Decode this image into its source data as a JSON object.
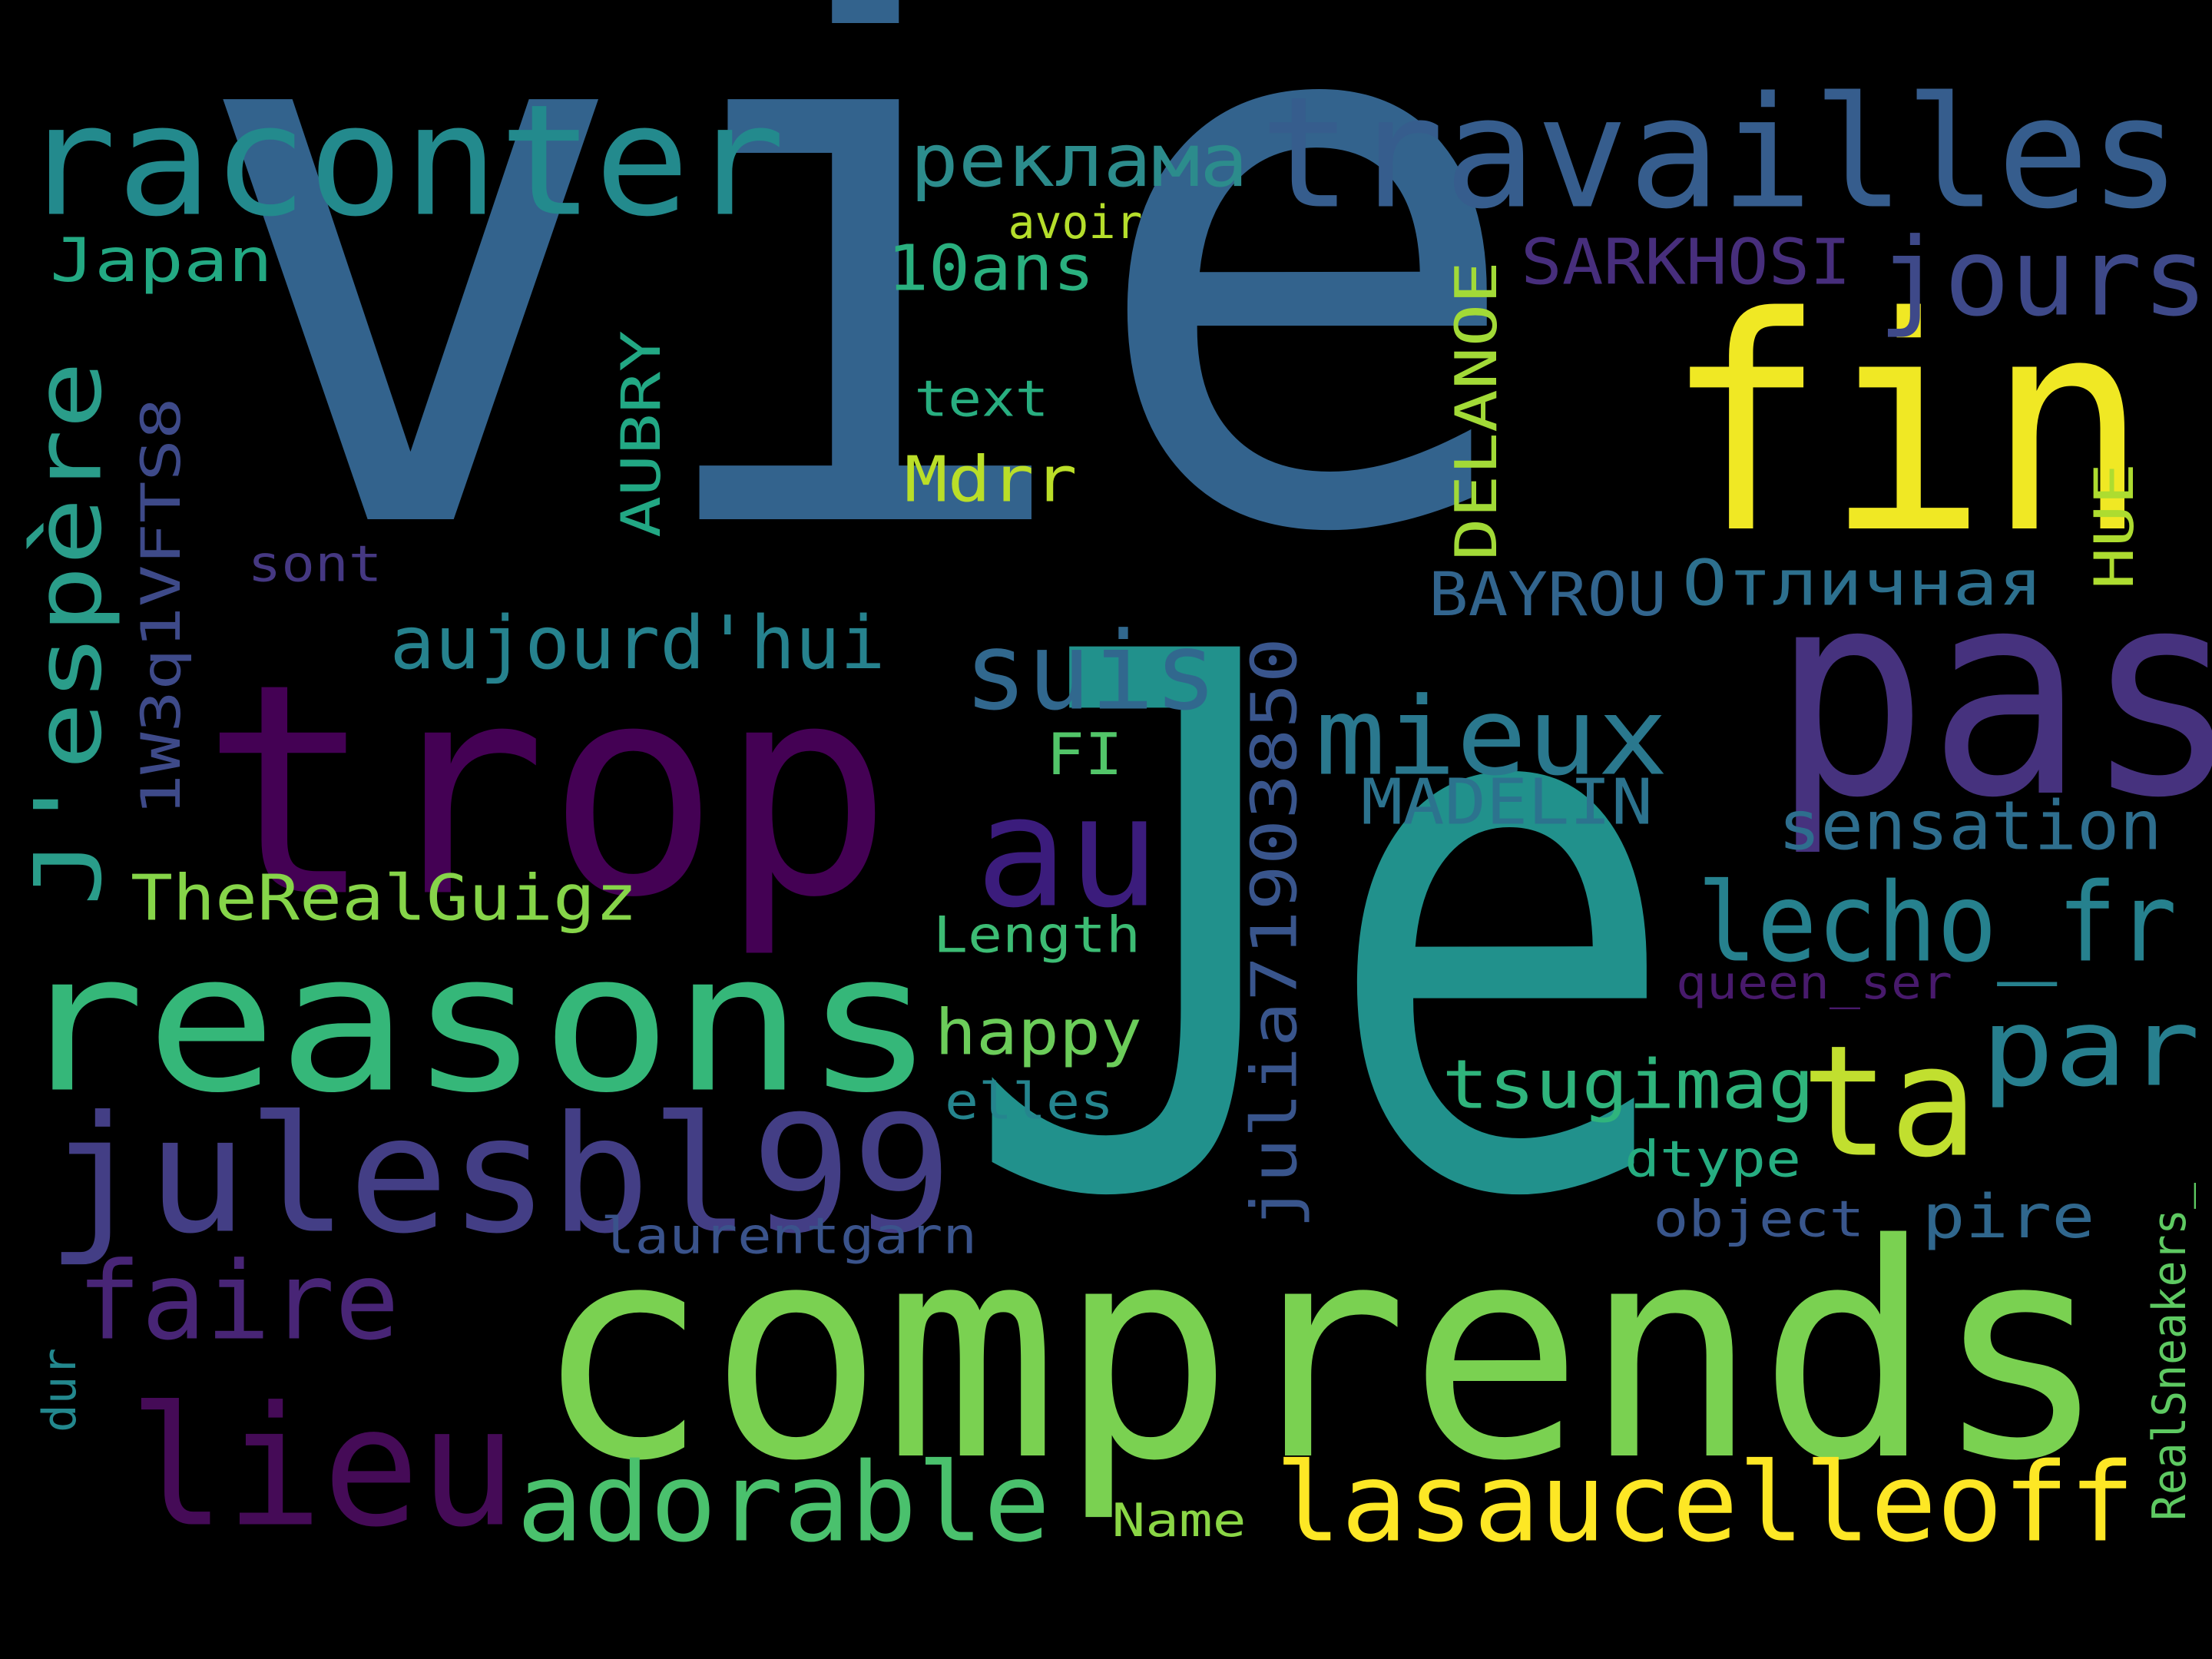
{
  "words": [
    {
      "text": "vie",
      "color": "#33638d"
    },
    {
      "text": "Je",
      "color": "#21918c"
    },
    {
      "text": "comprends",
      "color": "#7ad151"
    },
    {
      "text": "trop",
      "color": "#440154"
    },
    {
      "text": "fin",
      "color": "#f0e824"
    },
    {
      "text": "pas",
      "color": "#46327e"
    },
    {
      "text": "reasons",
      "color": "#35b779"
    },
    {
      "text": "raconter",
      "color": "#238a8d"
    },
    {
      "text": "travailles",
      "color": "#365d8d"
    },
    {
      "text": "julesbl99",
      "color": "#433e85"
    },
    {
      "text": "lieu",
      "color": "#450b57"
    },
    {
      "text": "au",
      "color": "#3b1c7c"
    },
    {
      "text": "ta",
      "color": "#c1df2f"
    },
    {
      "text": "lasaucelleoff",
      "color": "#fde725"
    },
    {
      "text": "adorable",
      "color": "#4ac16d"
    },
    {
      "text": "lecho_fr",
      "color": "#26818e"
    },
    {
      "text": "mieux",
      "color": "#2a788e"
    },
    {
      "text": "suis",
      "color": "#31688e"
    },
    {
      "text": "faire",
      "color": "#482576"
    },
    {
      "text": "jours",
      "color": "#3e4989"
    },
    {
      "text": "par",
      "color": "#277f8e"
    },
    {
      "text": "J'espère",
      "color": "#2a9d8a"
    },
    {
      "text": "aujourd'hui",
      "color": "#26828e"
    },
    {
      "text": "julia71903850",
      "color": "#39558c"
    },
    {
      "text": "реклама",
      "color": "#2c8c8c"
    },
    {
      "text": "sensation",
      "color": "#2e6e8e"
    },
    {
      "text": "tsugimag",
      "color": "#2fb47c"
    },
    {
      "text": "TheRealGuigz",
      "color": "#86d549"
    },
    {
      "text": "happy",
      "color": "#6ccd5a"
    },
    {
      "text": "Отличная",
      "color": "#2d708e"
    },
    {
      "text": "SARKHOSI",
      "color": "#472e7c"
    },
    {
      "text": "MADELIN",
      "color": "#2c738e"
    },
    {
      "text": "BAYROU",
      "color": "#32658e"
    },
    {
      "text": "pire",
      "color": "#30678d"
    },
    {
      "text": "Japan",
      "color": "#23a983"
    },
    {
      "text": "1W3q1VFTS8",
      "color": "#3e4a89"
    },
    {
      "text": "10ans",
      "color": "#2ab07f"
    },
    {
      "text": "AUBRY",
      "color": "#22a884"
    },
    {
      "text": "DELANOE",
      "color": "#a2da37"
    },
    {
      "text": "Mdrr",
      "color": "#bade28"
    },
    {
      "text": "HUE",
      "color": "#addc30"
    },
    {
      "text": "text",
      "color": "#28ae80"
    },
    {
      "text": "avoir",
      "color": "#b5de2b"
    },
    {
      "text": "sont",
      "color": "#453882"
    },
    {
      "text": "FI",
      "color": "#52c569"
    },
    {
      "text": "Length",
      "color": "#3dbc74"
    },
    {
      "text": "elles",
      "color": "#25858e"
    },
    {
      "text": "dtype",
      "color": "#26ad81"
    },
    {
      "text": "object",
      "color": "#39568c"
    },
    {
      "text": "laurentgarn",
      "color": "#3a538b"
    },
    {
      "text": "queen_ser",
      "color": "#481a6c"
    },
    {
      "text": "RealSneakers_",
      "color": "#5ec962"
    },
    {
      "text": "dur",
      "color": "#23888e"
    },
    {
      "text": "Name",
      "color": "#8bd646"
    }
  ]
}
